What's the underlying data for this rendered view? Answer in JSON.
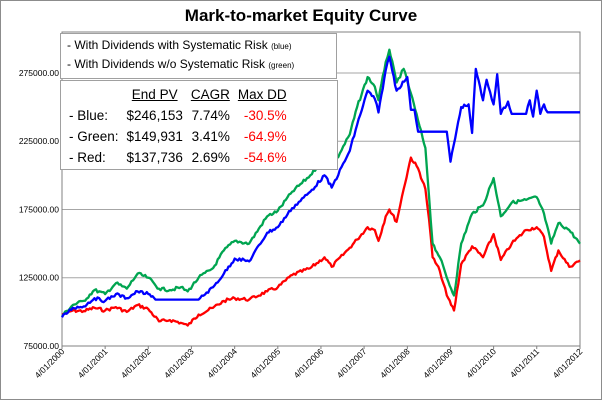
{
  "chart_data": {
    "type": "line",
    "title": "Mark-to-market Equity Curve",
    "xlabel": "",
    "ylabel": "",
    "x_ticks": [
      "4/01/2000",
      "4/01/2001",
      "4/01/2002",
      "4/01/2003",
      "4/01/2004",
      "4/01/2005",
      "4/01/2006",
      "4/01/2007",
      "4/01/2008",
      "4/01/2009",
      "4/01/2010",
      "4/01/2011",
      "4/01/2012"
    ],
    "y_ticks": [
      "75000.00",
      "125000.00",
      "175000.00",
      "225000.00",
      "275000.00"
    ],
    "ylim": [
      75000,
      305000
    ],
    "x_range": [
      "2000-04-01",
      "2012-04-01"
    ],
    "grid": "horizontal",
    "legend_lines": [
      {
        "text": "- With Dividends with Systematic Risk",
        "tag": "(blue)"
      },
      {
        "text": "- With Dividends w/o Systematic Risk",
        "tag": "(green)"
      }
    ],
    "stats_table": {
      "headers": [
        "End PV",
        "CAGR",
        "Max DD"
      ],
      "rows": [
        {
          "label": "- Blue:",
          "end_pv": "$246,153",
          "cagr": "7.74%",
          "max_dd": "-30.5%"
        },
        {
          "label": "- Green:",
          "end_pv": "$149,931",
          "cagr": "3.41%",
          "max_dd": "-64.9%"
        },
        {
          "label": "- Red:",
          "end_pv": "$137,736",
          "cagr": "2.69%",
          "max_dd": "-54.6%"
        }
      ]
    },
    "series": [
      {
        "color": "#ff0000",
        "x": [
          "2000-04-01",
          "2000-07-01",
          "2000-10-01",
          "2001-01-01",
          "2001-04-01",
          "2001-07-01",
          "2001-10-01",
          "2002-01-01",
          "2002-04-01",
          "2002-07-01",
          "2002-10-01",
          "2003-01-01",
          "2003-03-01",
          "2003-06-01",
          "2003-10-01",
          "2004-01-01",
          "2004-04-01",
          "2004-08-01",
          "2005-01-01",
          "2005-04-01",
          "2005-08-01",
          "2006-01-01",
          "2006-05-01",
          "2006-07-01",
          "2006-12-01",
          "2007-02-01",
          "2007-05-01",
          "2007-07-01",
          "2007-08-01",
          "2007-10-01",
          "2007-11-01",
          "2008-01-01",
          "2008-03-01",
          "2008-05-01",
          "2008-07-01",
          "2008-09-01",
          "2008-10-01",
          "2008-11-01",
          "2009-01-01",
          "2009-03-01",
          "2009-05-01",
          "2009-07-01",
          "2009-10-01",
          "2010-01-01",
          "2010-04-01",
          "2010-06-01",
          "2010-09-01",
          "2011-01-01",
          "2011-04-01",
          "2011-06-01",
          "2011-08-01",
          "2011-10-01",
          "2012-01-01",
          "2012-04-01"
        ],
        "values": [
          98000,
          101000,
          100500,
          103000,
          101000,
          103500,
          100000,
          105000,
          102000,
          93000,
          94000,
          92000,
          90000,
          98000,
          103000,
          108000,
          110000,
          109000,
          115000,
          118000,
          127000,
          132000,
          140000,
          133000,
          147000,
          153000,
          162000,
          160000,
          152000,
          170000,
          175000,
          166000,
          190000,
          213000,
          205000,
          190000,
          168000,
          140000,
          130000,
          112000,
          101000,
          135000,
          148000,
          140000,
          157000,
          138000,
          150000,
          160000,
          162000,
          155000,
          130000,
          145000,
          133000,
          137736
        ]
      },
      {
        "color": "#00a550",
        "x": [
          "2000-04-01",
          "2000-07-01",
          "2000-10-01",
          "2001-01-01",
          "2001-04-01",
          "2001-07-01",
          "2001-10-01",
          "2002-01-01",
          "2002-04-01",
          "2002-07-01",
          "2002-10-01",
          "2003-01-01",
          "2003-03-01",
          "2003-06-01",
          "2003-10-01",
          "2004-01-01",
          "2004-04-01",
          "2004-08-01",
          "2005-01-01",
          "2005-04-01",
          "2005-08-01",
          "2006-01-01",
          "2006-05-01",
          "2006-07-01",
          "2006-12-01",
          "2007-02-01",
          "2007-05-01",
          "2007-07-01",
          "2007-08-01",
          "2007-10-01",
          "2007-11-01",
          "2008-01-01",
          "2008-03-01",
          "2008-05-01",
          "2008-07-01",
          "2008-09-01",
          "2008-10-01",
          "2008-11-01",
          "2009-01-01",
          "2009-03-01",
          "2009-05-01",
          "2009-07-01",
          "2009-10-01",
          "2010-01-01",
          "2010-04-01",
          "2010-06-01",
          "2010-09-01",
          "2011-01-01",
          "2011-04-01",
          "2011-06-01",
          "2011-08-01",
          "2011-10-01",
          "2012-01-01",
          "2012-04-01"
        ],
        "values": [
          97000,
          105000,
          108000,
          116000,
          113000,
          121000,
          117000,
          128000,
          125000,
          117000,
          116000,
          118000,
          115000,
          125000,
          132000,
          145000,
          152000,
          150000,
          170000,
          174000,
          188000,
          200000,
          213000,
          205000,
          230000,
          250000,
          272000,
          265000,
          255000,
          283000,
          292000,
          268000,
          278000,
          260000,
          240000,
          220000,
          185000,
          150000,
          140000,
          125000,
          112000,
          150000,
          172000,
          178000,
          198000,
          170000,
          180000,
          182000,
          184000,
          172000,
          150000,
          165000,
          160000,
          149931
        ]
      },
      {
        "color": "#0000ff",
        "x": [
          "2000-04-01",
          "2000-07-01",
          "2000-10-01",
          "2001-01-01",
          "2001-04-01",
          "2001-07-01",
          "2001-10-01",
          "2002-01-01",
          "2002-04-01",
          "2002-06-01",
          "2003-06-01",
          "2003-10-01",
          "2004-01-01",
          "2004-04-01",
          "2004-08-01",
          "2005-01-01",
          "2005-04-01",
          "2005-08-01",
          "2006-01-01",
          "2006-05-01",
          "2006-07-01",
          "2006-12-01",
          "2007-02-01",
          "2007-05-01",
          "2007-07-01",
          "2007-08-01",
          "2007-10-01",
          "2007-11-01",
          "2008-01-01",
          "2008-04-01",
          "2008-05-01",
          "2008-06-01",
          "2008-07-01",
          "2009-03-01",
          "2009-04-01",
          "2009-07-01",
          "2009-09-01",
          "2009-10-01",
          "2009-11-01",
          "2010-01-01",
          "2010-02-01",
          "2010-04-01",
          "2010-05-01",
          "2010-06-01",
          "2010-08-01",
          "2010-09-01",
          "2011-01-01",
          "2011-02-01",
          "2011-03-01",
          "2011-04-01",
          "2011-05-01",
          "2011-06-01",
          "2011-07-01",
          "2012-04-01"
        ],
        "values": [
          96000,
          103000,
          104000,
          110000,
          108000,
          113000,
          110000,
          115000,
          113000,
          109000,
          109000,
          118000,
          128000,
          139000,
          137000,
          158000,
          162000,
          176000,
          188000,
          200000,
          191000,
          218000,
          237000,
          262000,
          256000,
          246000,
          277000,
          287000,
          262000,
          272000,
          248000,
          248000,
          232000,
          232000,
          210000,
          250000,
          252000,
          231000,
          278000,
          255000,
          270000,
          252000,
          274000,
          245000,
          254000,
          245000,
          245000,
          255000,
          243000,
          262000,
          245000,
          252000,
          246153,
          246153
        ]
      }
    ]
  }
}
